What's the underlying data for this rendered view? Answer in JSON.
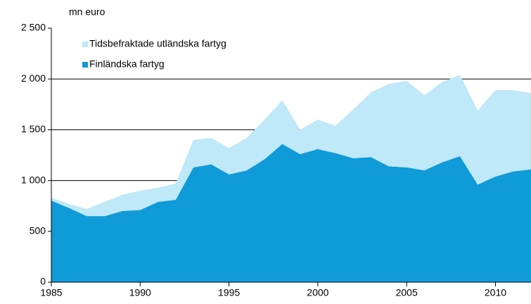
{
  "chart_data": {
    "type": "stacked_area",
    "unit_label": "mn euro",
    "x": [
      1985,
      1986,
      1987,
      1988,
      1989,
      1990,
      1991,
      1992,
      1993,
      1994,
      1995,
      1996,
      1997,
      1998,
      1999,
      2000,
      2001,
      2002,
      2003,
      2004,
      2005,
      2006,
      2007,
      2008,
      2009,
      2010,
      2011,
      2012
    ],
    "series": [
      {
        "name": "Finländska fartyg",
        "color": "#0f9ad8",
        "values": [
          803,
          730,
          650,
          650,
          700,
          710,
          790,
          810,
          1130,
          1160,
          1060,
          1100,
          1210,
          1360,
          1260,
          1310,
          1270,
          1220,
          1230,
          1140,
          1130,
          1100,
          1180,
          1240,
          960,
          1040,
          1090,
          1110
        ]
      },
      {
        "name": "Tidsbefraktade utländska fartyg",
        "color": "#bfe8f8",
        "values": [
          27,
          40,
          70,
          140,
          160,
          190,
          140,
          160,
          270,
          260,
          260,
          320,
          390,
          430,
          240,
          290,
          270,
          480,
          640,
          810,
          850,
          740,
          790,
          800,
          730,
          850,
          800,
          750
        ]
      }
    ],
    "xlim": [
      1985,
      2012
    ],
    "xticks": [
      1985,
      1990,
      1995,
      2000,
      2005,
      2010
    ],
    "ylim": [
      0,
      2500
    ],
    "yticks": [
      0,
      500,
      {
        "value": 1000,
        "label": "1 000"
      },
      {
        "value": 1500,
        "label": "1 500"
      },
      {
        "value": 2000,
        "label": "2 000"
      },
      {
        "value": 2500,
        "label": "2 500"
      }
    ],
    "grid": true
  }
}
